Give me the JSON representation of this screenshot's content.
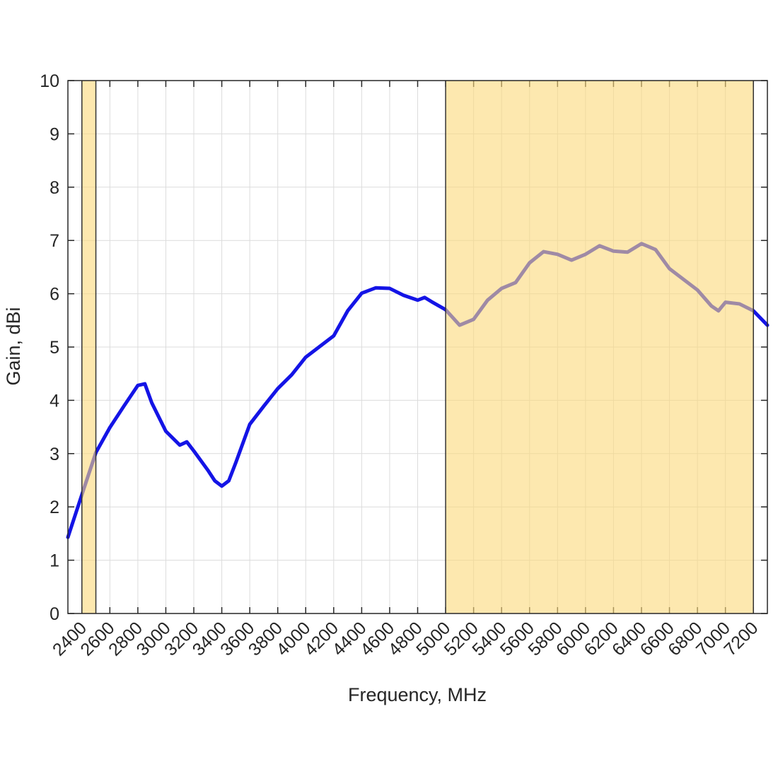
{
  "chart_data": {
    "type": "line",
    "xlabel": "Frequency, MHz",
    "ylabel": "Gain, dBi",
    "xlim": [
      2300,
      7300
    ],
    "ylim": [
      0,
      10
    ],
    "xticks": [
      2400,
      2600,
      2800,
      3000,
      3200,
      3400,
      3600,
      3800,
      4000,
      4200,
      4400,
      4600,
      4800,
      5000,
      5200,
      5400,
      5600,
      5800,
      6000,
      6200,
      6400,
      6600,
      6800,
      7000,
      7200
    ],
    "yticks": [
      0,
      1,
      2,
      3,
      4,
      5,
      6,
      7,
      8,
      9,
      10
    ],
    "grid": true,
    "bands": [
      [
        2400,
        2500
      ],
      [
        5000,
        7200
      ]
    ],
    "band_color": "#fcd97a",
    "series": [
      {
        "color": "#1414e6",
        "x": [
          2300,
          2350,
          2400,
          2500,
          2600,
          2700,
          2800,
          2850,
          2900,
          3000,
          3100,
          3150,
          3200,
          3300,
          3350,
          3400,
          3450,
          3500,
          3600,
          3700,
          3800,
          3900,
          4000,
          4100,
          4200,
          4300,
          4400,
          4500,
          4600,
          4700,
          4800,
          4850,
          4900,
          5000,
          5100,
          5200,
          5300,
          5400,
          5500,
          5600,
          5700,
          5800,
          5900,
          6000,
          6100,
          6200,
          6300,
          6400,
          6500,
          6600,
          6700,
          6800,
          6900,
          6950,
          7000,
          7100,
          7200,
          7300
        ],
        "values": [
          1.43,
          1.83,
          2.23,
          3.02,
          3.49,
          3.89,
          4.28,
          4.31,
          3.95,
          3.42,
          3.16,
          3.22,
          3.05,
          2.69,
          2.49,
          2.39,
          2.49,
          2.83,
          3.55,
          3.89,
          4.22,
          4.48,
          4.81,
          5.01,
          5.21,
          5.68,
          6.01,
          6.11,
          6.1,
          5.97,
          5.88,
          5.93,
          5.85,
          5.7,
          5.41,
          5.52,
          5.88,
          6.1,
          6.21,
          6.58,
          6.79,
          6.74,
          6.63,
          6.74,
          6.9,
          6.8,
          6.78,
          6.94,
          6.83,
          6.47,
          6.27,
          6.07,
          5.77,
          5.68,
          5.84,
          5.81,
          5.68,
          5.41
        ]
      }
    ]
  }
}
